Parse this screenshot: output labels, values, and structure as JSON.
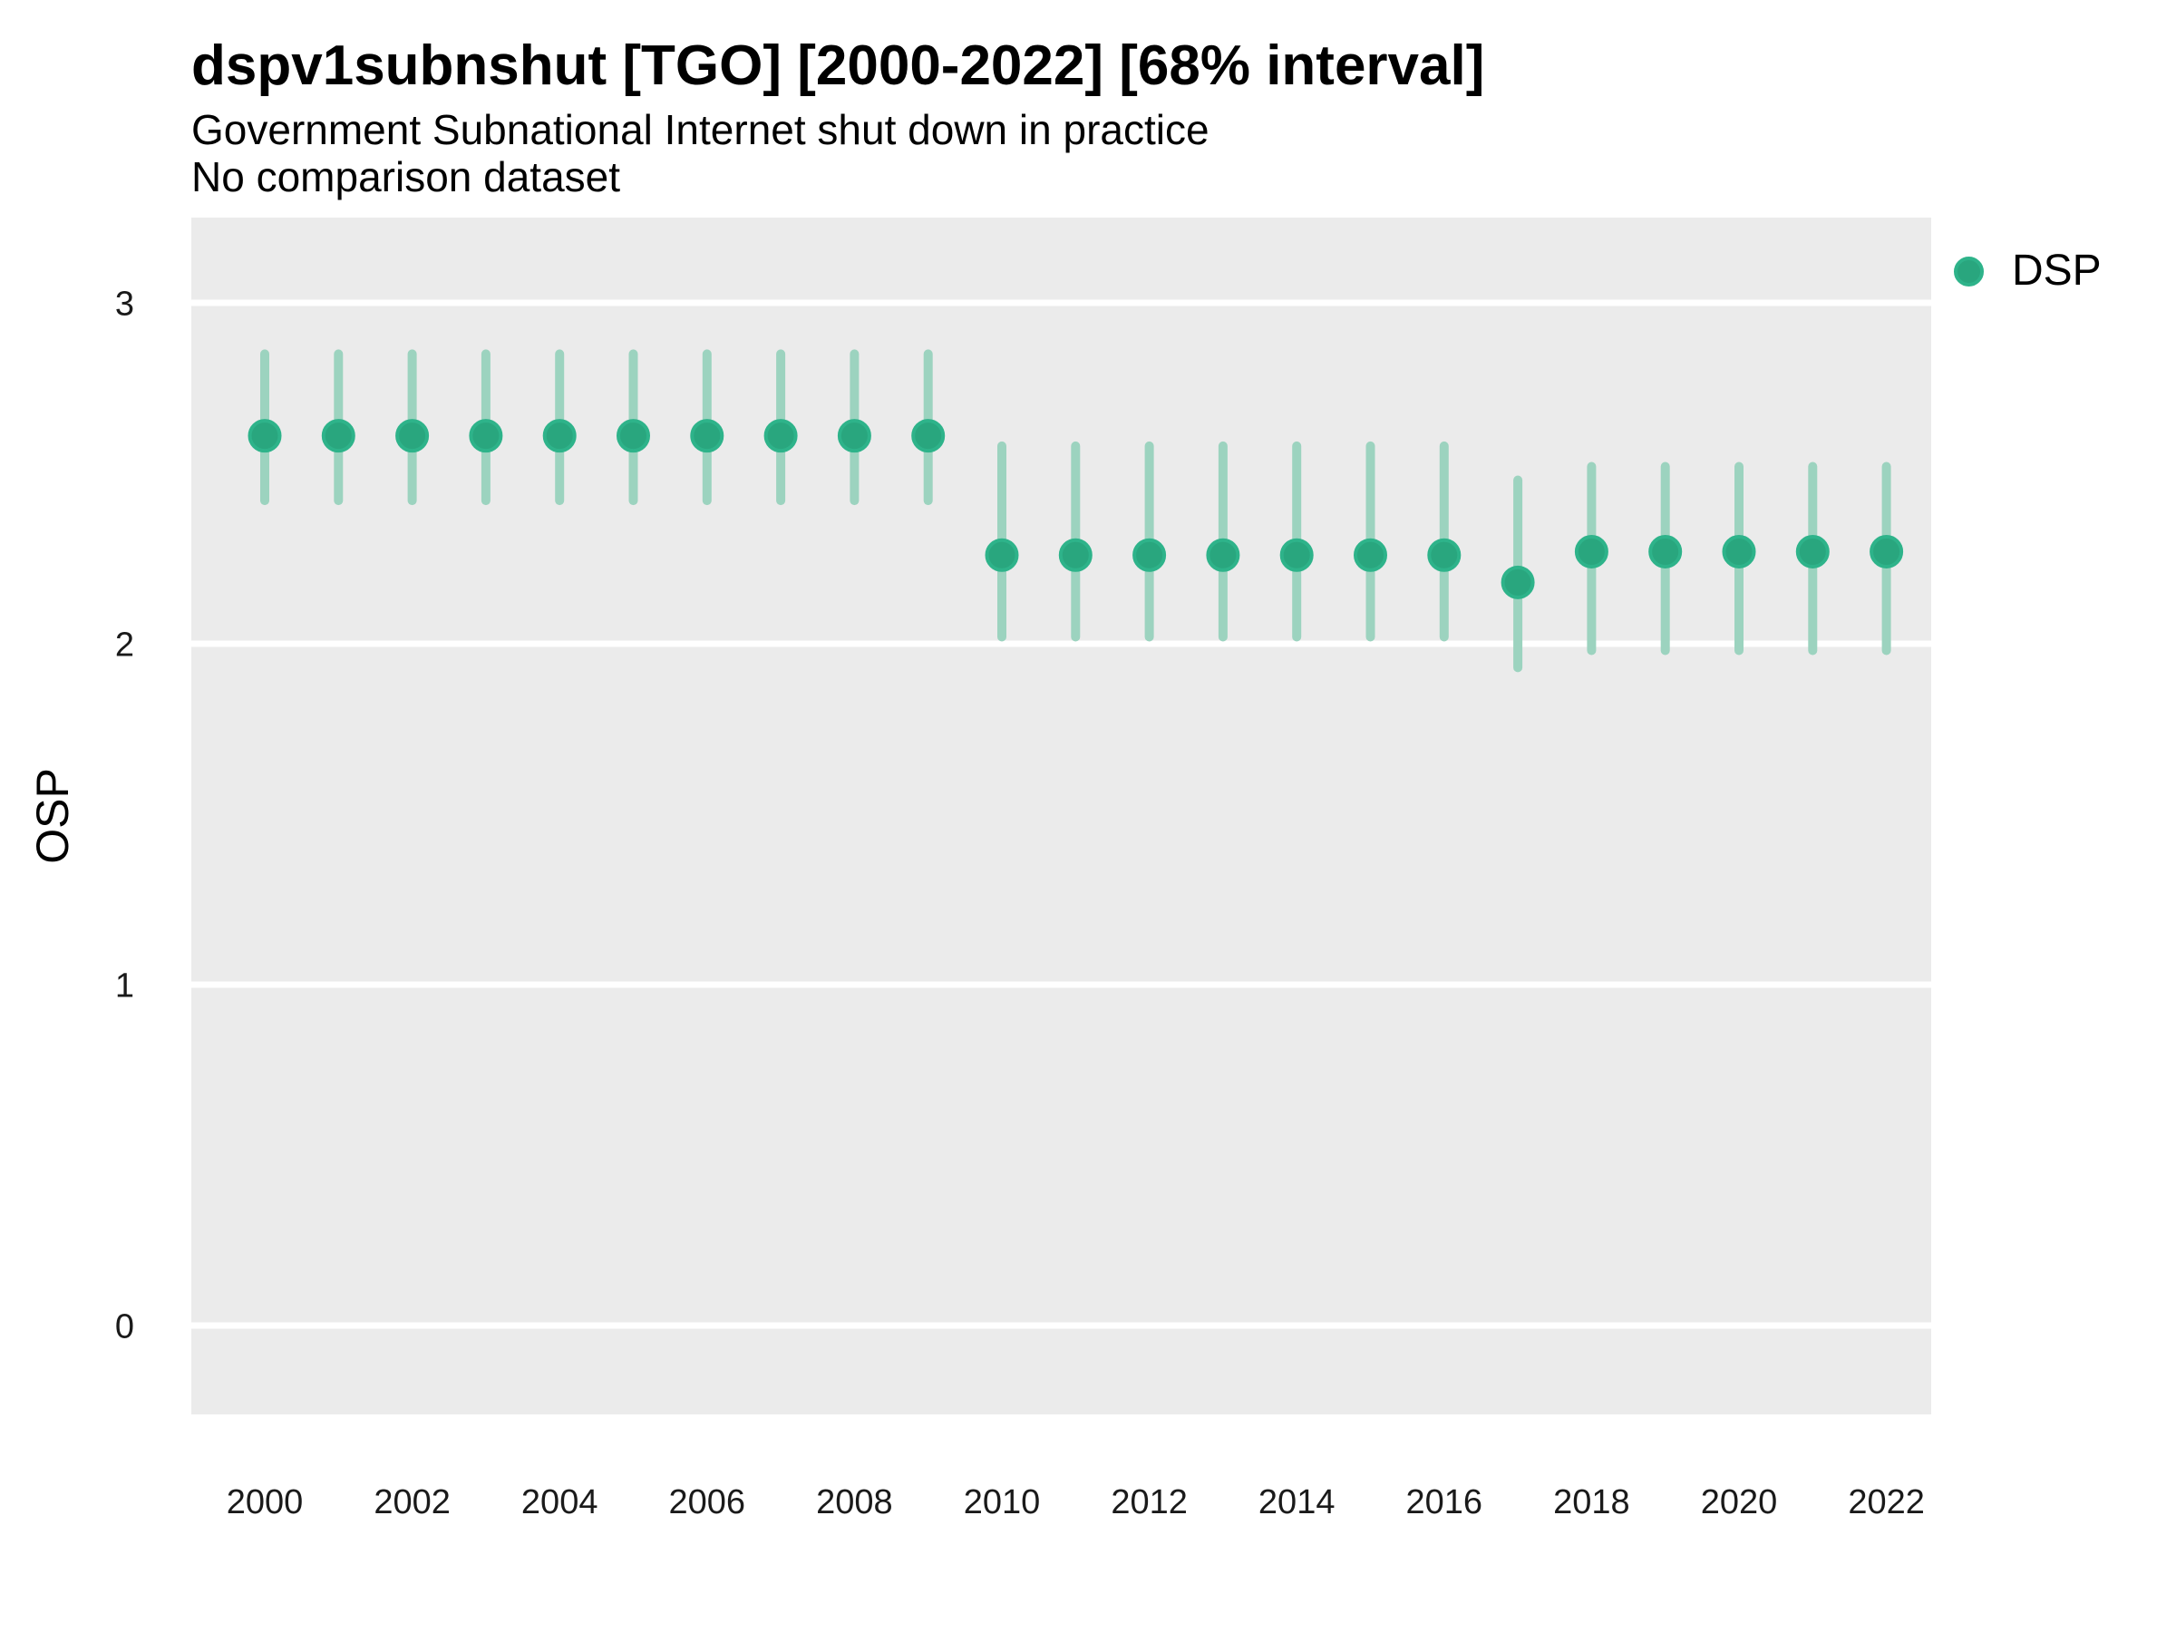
{
  "header": {
    "title": "dspv1subnshut [TGO] [2000-2022] [68% interval]",
    "subtitle": "Government Subnational Internet shut down in practice",
    "comparison_note": "No comparison dataset"
  },
  "legend": {
    "items": [
      {
        "label": "DSP",
        "color": "#29a67e"
      }
    ]
  },
  "axes": {
    "y_title": "OSP",
    "y_tick_labels": [
      "3",
      "2",
      "1",
      "0"
    ],
    "x_tick_labels": [
      "2000",
      "2002",
      "2004",
      "2006",
      "2008",
      "2010",
      "2012",
      "2014",
      "2016",
      "2018",
      "2020",
      "2022"
    ]
  },
  "chart_data": {
    "type": "scatter",
    "subtype": "pointrange",
    "title": "dspv1subnshut [TGO] [2000-2022] [68% interval]",
    "subtitle": "Government Subnational Internet shut down in practice",
    "note": "No comparison dataset",
    "series_name": "DSP",
    "interval": "68%",
    "xlabel": "",
    "ylabel": "OSP",
    "x": [
      2000,
      2001,
      2002,
      2003,
      2004,
      2005,
      2006,
      2007,
      2008,
      2009,
      2010,
      2011,
      2012,
      2013,
      2014,
      2015,
      2016,
      2017,
      2018,
      2019,
      2020,
      2021,
      2022
    ],
    "values": [
      2.61,
      2.61,
      2.61,
      2.61,
      2.61,
      2.61,
      2.61,
      2.61,
      2.61,
      2.61,
      2.26,
      2.26,
      2.26,
      2.26,
      2.26,
      2.26,
      2.26,
      2.18,
      2.27,
      2.27,
      2.27,
      2.27,
      2.27
    ],
    "lower": [
      2.42,
      2.42,
      2.42,
      2.42,
      2.42,
      2.42,
      2.42,
      2.42,
      2.42,
      2.42,
      2.02,
      2.02,
      2.02,
      2.02,
      2.02,
      2.02,
      2.02,
      1.93,
      1.98,
      1.98,
      1.98,
      1.98,
      1.98
    ],
    "upper": [
      2.85,
      2.85,
      2.85,
      2.85,
      2.85,
      2.85,
      2.85,
      2.85,
      2.85,
      2.85,
      2.58,
      2.58,
      2.58,
      2.58,
      2.58,
      2.58,
      2.58,
      2.48,
      2.52,
      2.52,
      2.52,
      2.52,
      2.52
    ],
    "y_ticks": [
      3,
      2,
      1,
      0
    ],
    "x_ticks": [
      2000,
      2002,
      2004,
      2006,
      2008,
      2010,
      2012,
      2014,
      2016,
      2018,
      2020,
      2022
    ],
    "ylim": [
      -0.26,
      3.25
    ],
    "xlim": [
      1999,
      2023
    ],
    "grid": "major-y-only",
    "legend_position": "top-right",
    "colors": {
      "point_fill": "#29a67e",
      "point_stroke": "#2eb38a",
      "range_line": "#9cd3bf",
      "panel_background": "#ebebeb",
      "gridline": "#ffffff",
      "text": "#000000",
      "tick_text": "#1a1a1a"
    }
  }
}
